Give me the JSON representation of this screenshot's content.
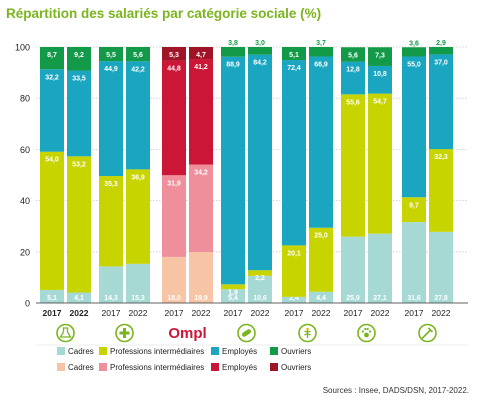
{
  "title": "Répartition des salariés par catégorie sociale (%)",
  "source": "Sources : Insee, DADS/DSN, 2017-2022.",
  "chart_data": {
    "type": "bar",
    "stacked": true,
    "ylim": [
      0,
      100
    ],
    "yticks": [
      0,
      20,
      40,
      60,
      80,
      100
    ],
    "grid": true,
    "categories": [
      "2017",
      "2022",
      "2017",
      "2022",
      "2017",
      "2022",
      "2017",
      "2022",
      "2017",
      "2022",
      "2017",
      "2022",
      "2017",
      "2022"
    ],
    "groups": [
      {
        "icon": "flask-icon",
        "label": "",
        "years": [
          "2017",
          "2022"
        ],
        "palette": "main",
        "bold_years": true
      },
      {
        "icon": "medical-cross-icon",
        "label": "",
        "years": [
          "2017",
          "2022"
        ],
        "palette": "main"
      },
      {
        "icon": "",
        "label": "Ompl",
        "years": [
          "2017",
          "2022"
        ],
        "palette": "ompl"
      },
      {
        "icon": "pill-icon",
        "label": "",
        "years": [
          "2017",
          "2022"
        ],
        "palette": "main"
      },
      {
        "icon": "caduceus-icon",
        "label": "",
        "years": [
          "2017",
          "2022"
        ],
        "palette": "main"
      },
      {
        "icon": "paw-icon",
        "label": "",
        "years": [
          "2017",
          "2022"
        ],
        "palette": "main"
      },
      {
        "icon": "syringe-icon",
        "label": "",
        "years": [
          "2017",
          "2022"
        ],
        "palette": "main"
      }
    ],
    "series": [
      {
        "name": "Cadres",
        "values": [
          5.1,
          4.1,
          14.3,
          15.3,
          18.0,
          19.9,
          5.4,
          10.6,
          2.4,
          4.4,
          25.9,
          27.1,
          31.6,
          27.8
        ]
      },
      {
        "name": "Professions intermédiaires",
        "values": [
          54.0,
          53.2,
          35.3,
          36.9,
          31.9,
          34.2,
          1.9,
          2.2,
          20.1,
          25.0,
          55.6,
          54.7,
          9.7,
          32.3
        ]
      },
      {
        "name": "Employés",
        "values": [
          32.2,
          33.5,
          44.9,
          42.2,
          44.8,
          41.2,
          88.9,
          84.2,
          72.4,
          66.9,
          12.8,
          10.8,
          55.0,
          37.0
        ]
      },
      {
        "name": "Ouvriers",
        "values": [
          8.7,
          9.2,
          5.5,
          5.6,
          5.3,
          4.7,
          3.8,
          3.0,
          5.1,
          3.7,
          5.6,
          7.3,
          3.6,
          2.9
        ]
      }
    ],
    "labels": [
      [
        "5,1",
        "4,1",
        "14,3",
        "15,3",
        "18,0",
        "19,9",
        "5,4",
        "10,6",
        "2,4",
        "4,4",
        "25,9",
        "27,1",
        "31,6",
        "27,8"
      ],
      [
        "54,0",
        "53,2",
        "35,3",
        "36,9",
        "31,9",
        "34,2",
        "1,9",
        "2,2",
        "20,1",
        "25,0",
        "55,6",
        "54,7",
        "9,7",
        "32,3"
      ],
      [
        "32,2",
        "33,5",
        "44,9",
        "42,2",
        "44,8",
        "41,2",
        "88,9",
        "84,2",
        "72,4",
        "66,9",
        "12,8",
        "10,8",
        "55,0",
        "37,0"
      ],
      [
        "8,7",
        "9,2",
        "5,5",
        "5,6",
        "5,3",
        "4,7",
        "3,8",
        "3,0",
        "5,1",
        "3,7",
        "5,6",
        "7,3",
        "3,6",
        "2,9"
      ]
    ],
    "colors": {
      "main": [
        "#a6d9d3",
        "#c8d400",
        "#1aa6c0",
        "#139a48"
      ],
      "ompl": [
        "#f8c4a6",
        "#ee8f9b",
        "#cc1638",
        "#a01428"
      ]
    },
    "legend": [
      {
        "palette": "main",
        "items": [
          "Cadres",
          "Professions intermédiaires",
          "Employés",
          "Ouvriers"
        ]
      },
      {
        "palette": "ompl",
        "items": [
          "Cadres",
          "Professions intermédiaires",
          "Employés",
          "Ouvriers"
        ]
      }
    ],
    "legend_position": "bottom"
  }
}
